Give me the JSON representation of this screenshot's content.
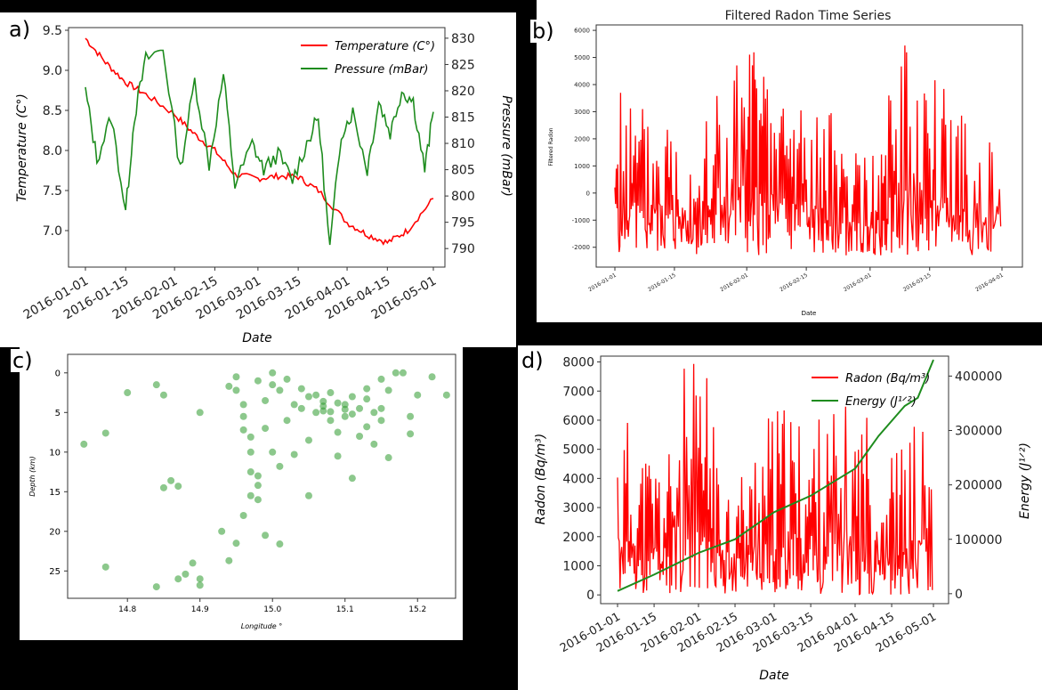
{
  "colors": {
    "red": "#ff0000",
    "green": "#1e8c1e",
    "scatter": "#2e9a2e",
    "axis": "#333333"
  },
  "labels": {
    "a": "a)",
    "b": "b)",
    "c": "c)",
    "d": "d)"
  },
  "chart_data": [
    {
      "id": "a",
      "type": "line",
      "xlabel": "Date",
      "ylabel": "Temperature (C°)",
      "ylabel_right": "Pressure (mBar)",
      "x_ticks": [
        "2016-01-01",
        "2016-01-15",
        "2016-02-01",
        "2016-02-15",
        "2016-03-01",
        "2016-03-15",
        "2016-04-01",
        "2016-04-15",
        "2016-05-01"
      ],
      "xlim": [
        "2016-01-01",
        "2016-05-01"
      ],
      "ylim": [
        6.6,
        9.5
      ],
      "y_ticks": [
        "9.5",
        "9.0",
        "8.5",
        "8.0",
        "7.5",
        "7.0"
      ],
      "ylim_right": [
        788,
        831
      ],
      "y_ticks_right": [
        "830",
        "825",
        "820",
        "815",
        "810",
        "805",
        "800",
        "795",
        "790"
      ],
      "legend": "top-right",
      "series": [
        {
          "name": "Temperature (C°)",
          "axis": "left",
          "color": "#ff0000",
          "x": [
            "2016-01-01",
            "2016-01-08",
            "2016-01-15",
            "2016-01-22",
            "2016-02-01",
            "2016-02-08",
            "2016-02-15",
            "2016-02-22",
            "2016-03-01",
            "2016-03-08",
            "2016-03-15",
            "2016-03-22",
            "2016-04-01",
            "2016-04-08",
            "2016-04-15",
            "2016-04-22",
            "2016-05-01"
          ],
          "y": [
            9.4,
            9.1,
            8.85,
            8.7,
            8.45,
            8.2,
            8.0,
            7.7,
            7.65,
            7.68,
            7.67,
            7.5,
            7.1,
            6.95,
            6.85,
            7.0,
            7.4
          ]
        },
        {
          "name": "Pressure (mBar)",
          "axis": "right",
          "color": "#1e8c1e",
          "x": [
            "2016-01-01",
            "2016-01-05",
            "2016-01-10",
            "2016-01-15",
            "2016-01-18",
            "2016-01-22",
            "2016-01-28",
            "2016-02-03",
            "2016-02-08",
            "2016-02-13",
            "2016-02-18",
            "2016-02-22",
            "2016-02-28",
            "2016-03-03",
            "2016-03-08",
            "2016-03-13",
            "2016-03-18",
            "2016-03-22",
            "2016-03-26",
            "2016-03-30",
            "2016-04-03",
            "2016-04-08",
            "2016-04-12",
            "2016-04-16",
            "2016-04-20",
            "2016-04-24",
            "2016-04-28",
            "2016-05-01"
          ],
          "y": [
            820,
            807,
            815,
            797,
            815,
            826,
            828,
            805,
            822,
            806,
            823,
            802,
            810,
            805,
            808,
            803,
            810,
            815,
            790,
            812,
            816,
            805,
            818,
            812,
            820,
            818,
            805,
            816
          ]
        }
      ]
    },
    {
      "id": "b",
      "type": "line",
      "title": "Filtered Radon Time Series",
      "xlabel": "Date",
      "ylabel": "Filtered Radon",
      "x_ticks": [
        "2016-01-01",
        "2016-01-15",
        "2016-02-01",
        "2016-02-15",
        "2016-03-01",
        "2016-03-15",
        "2016-04-01"
      ],
      "xlim": [
        "2016-01-01",
        "2016-04-01"
      ],
      "ylim": [
        -2600,
        6200
      ],
      "y_ticks": [
        "6000",
        "5000",
        "4000",
        "3000",
        "2000",
        "1000",
        "0",
        "-1000",
        "-2000"
      ],
      "series": [
        {
          "color": "#ff0000",
          "x": [
            "2016-01-01",
            "2016-01-05",
            "2016-01-10",
            "2016-01-15",
            "2016-01-20",
            "2016-01-25",
            "2016-02-01",
            "2016-02-05",
            "2016-02-10",
            "2016-02-15",
            "2016-02-20",
            "2016-02-25",
            "2016-03-01",
            "2016-03-05",
            "2016-03-10",
            "2016-03-15",
            "2016-03-20",
            "2016-03-25",
            "2016-04-01"
          ],
          "y": [
            3800,
            -2000,
            3500,
            -2000,
            2800,
            -2200,
            5700,
            -2300,
            4400,
            -2000,
            3000,
            -2100,
            1500,
            -2200,
            5500,
            -1800,
            4200,
            -2000,
            2200
          ]
        }
      ]
    },
    {
      "id": "c",
      "type": "scatter",
      "xlabel": "Longitude °",
      "ylabel": "Depth (km)",
      "x_ticks": [
        "14.8",
        "14.9",
        "15.0",
        "15.1",
        "15.2"
      ],
      "xlim": [
        14.72,
        15.25
      ],
      "y_ticks": [
        "0",
        "5",
        "10",
        "15",
        "20",
        "25"
      ],
      "ylim": [
        -2,
        28
      ],
      "y_inverted": true,
      "series": [
        {
          "color": "#2e9a2e",
          "points": [
            [
              14.74,
              9
            ],
            [
              14.77,
              7.6
            ],
            [
              14.77,
              24.5
            ],
            [
              14.8,
              2.5
            ],
            [
              14.84,
              1.5
            ],
            [
              14.85,
              2.8
            ],
            [
              14.85,
              14.5
            ],
            [
              14.86,
              13.6
            ],
            [
              14.87,
              14.3
            ],
            [
              14.84,
              27
            ],
            [
              14.87,
              26
            ],
            [
              14.88,
              25.4
            ],
            [
              14.89,
              24
            ],
            [
              14.9,
              26
            ],
            [
              14.9,
              26.8
            ],
            [
              14.9,
              5
            ],
            [
              14.94,
              1.7
            ],
            [
              14.95,
              0.5
            ],
            [
              14.95,
              2.2
            ],
            [
              14.96,
              4
            ],
            [
              14.96,
              5.5
            ],
            [
              14.96,
              7.2
            ],
            [
              14.97,
              8.1
            ],
            [
              14.97,
              10
            ],
            [
              14.97,
              12.5
            ],
            [
              14.98,
              14.2
            ],
            [
              14.98,
              16
            ],
            [
              14.98,
              1
            ],
            [
              14.99,
              3.5
            ],
            [
              14.99,
              7
            ],
            [
              14.99,
              20.5
            ],
            [
              15.0,
              0
            ],
            [
              15.0,
              1.5
            ],
            [
              15.01,
              2.2
            ],
            [
              15.01,
              11.8
            ],
            [
              15.01,
              21.6
            ],
            [
              15.02,
              0.8
            ],
            [
              15.03,
              10.3
            ],
            [
              15.04,
              2
            ],
            [
              15.04,
              4.5
            ],
            [
              15.05,
              3
            ],
            [
              15.05,
              8.5
            ],
            [
              15.05,
              15.5
            ],
            [
              15.06,
              5
            ],
            [
              15.07,
              3.6
            ],
            [
              15.07,
              4.8
            ],
            [
              15.08,
              6
            ],
            [
              15.08,
              2.5
            ],
            [
              15.09,
              7.5
            ],
            [
              15.09,
              10.5
            ],
            [
              15.1,
              4
            ],
            [
              15.1,
              5.5
            ],
            [
              15.11,
              13.3
            ],
            [
              15.11,
              3
            ],
            [
              15.12,
              4.5
            ],
            [
              15.12,
              8
            ],
            [
              15.13,
              6.8
            ],
            [
              15.13,
              2
            ],
            [
              15.14,
              5
            ],
            [
              15.14,
              9
            ],
            [
              15.15,
              4.5
            ],
            [
              15.15,
              0.8
            ],
            [
              15.16,
              10.7
            ],
            [
              15.16,
              2.2
            ],
            [
              15.17,
              0
            ],
            [
              15.18,
              0
            ],
            [
              15.19,
              7.7
            ],
            [
              15.19,
              5.5
            ],
            [
              15.2,
              2.8
            ],
            [
              15.22,
              0.5
            ],
            [
              15.24,
              2.8
            ],
            [
              14.93,
              20
            ],
            [
              14.94,
              23.7
            ],
            [
              14.95,
              21.5
            ],
            [
              14.96,
              18
            ],
            [
              14.97,
              15.5
            ],
            [
              14.98,
              13
            ],
            [
              15.0,
              10
            ],
            [
              15.02,
              6
            ],
            [
              15.03,
              4
            ],
            [
              15.06,
              2.8
            ],
            [
              15.09,
              3.8
            ],
            [
              15.11,
              5.2
            ],
            [
              15.13,
              3.3
            ],
            [
              15.15,
              6
            ],
            [
              15.07,
              4.2
            ],
            [
              15.08,
              4.9
            ],
            [
              15.1,
              4.6
            ]
          ]
        }
      ]
    },
    {
      "id": "d",
      "type": "line",
      "xlabel": "Date",
      "ylabel": "Radon (Bq/m³)",
      "ylabel_right": "Energy (J¹ᐟ²)",
      "x_ticks": [
        "2016-01-01",
        "2016-01-15",
        "2016-02-01",
        "2016-02-15",
        "2016-03-01",
        "2016-03-15",
        "2016-04-01",
        "2016-04-15",
        "2016-05-01"
      ],
      "xlim": [
        "2016-01-01",
        "2016-05-01"
      ],
      "ylim": [
        -300,
        8200
      ],
      "y_ticks": [
        "8000",
        "7000",
        "6000",
        "5000",
        "4000",
        "3000",
        "2000",
        "1000",
        "0"
      ],
      "ylim_right": [
        -15000,
        435000
      ],
      "y_ticks_right": [
        "400000",
        "300000",
        "200000",
        "100000",
        "0"
      ],
      "legend": "top-right",
      "series": [
        {
          "name": "Radon (Bq/m³)",
          "axis": "left",
          "color": "#ff0000",
          "x": [
            "2016-01-01",
            "2016-01-08",
            "2016-01-15",
            "2016-01-22",
            "2016-02-01",
            "2016-02-08",
            "2016-02-15",
            "2016-02-22",
            "2016-03-01",
            "2016-03-08",
            "2016-03-15",
            "2016-03-22",
            "2016-04-01",
            "2016-04-08",
            "2016-04-15",
            "2016-04-22",
            "2016-05-01"
          ],
          "y": [
            6200,
            0,
            5200,
            100,
            8000,
            200,
            4500,
            100,
            6500,
            300,
            6200,
            200,
            6500,
            100,
            5200,
            0,
            6000
          ]
        },
        {
          "name": "Energy (J¹ᐟ²)",
          "axis": "right",
          "color": "#1e8c1e",
          "x": [
            "2016-01-01",
            "2016-01-15",
            "2016-02-01",
            "2016-02-15",
            "2016-03-01",
            "2016-03-15",
            "2016-04-01",
            "2016-04-10",
            "2016-04-20",
            "2016-04-25",
            "2016-05-01"
          ],
          "y": [
            5000,
            35000,
            75000,
            100000,
            150000,
            180000,
            230000,
            290000,
            345000,
            360000,
            430000
          ]
        }
      ]
    }
  ]
}
